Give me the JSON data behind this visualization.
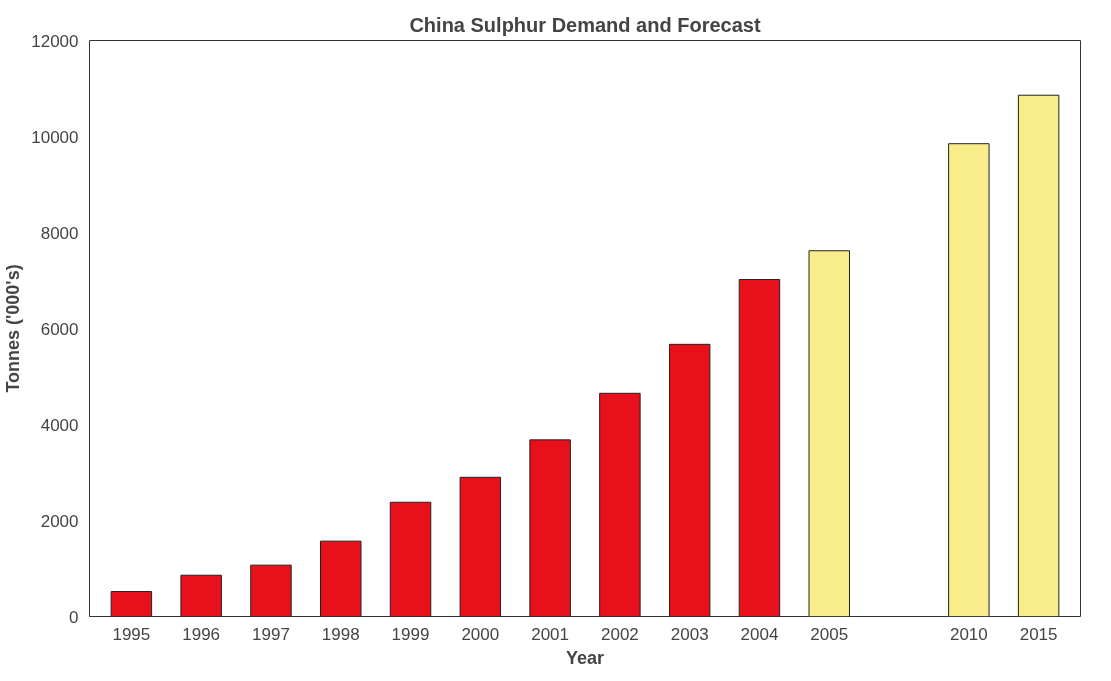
{
  "chart_data": {
    "type": "bar",
    "title": "China Sulphur Demand and Forecast",
    "xlabel": "Year",
    "ylabel": "Tonnes ('000's)",
    "categories": [
      "1995",
      "1996",
      "1997",
      "1998",
      "1999",
      "2000",
      "2001",
      "2002",
      "2003",
      "2004",
      "2005",
      null,
      "2010",
      "2015"
    ],
    "values": [
      520,
      860,
      1070,
      1570,
      2380,
      2900,
      3680,
      4650,
      5670,
      7020,
      7620,
      null,
      9850,
      10860
    ],
    "colors": [
      "#e8101a",
      "#e8101a",
      "#e8101a",
      "#e8101a",
      "#e8101a",
      "#e8101a",
      "#e8101a",
      "#e8101a",
      "#e8101a",
      "#e8101a",
      "#f9ec8a",
      "#f9ec8a",
      "#f9ec8a",
      "#f9ec8a"
    ],
    "ylim": [
      0,
      12000
    ],
    "yticks": [
      0,
      2000,
      4000,
      6000,
      8000,
      10000,
      12000
    ],
    "grid": false
  }
}
